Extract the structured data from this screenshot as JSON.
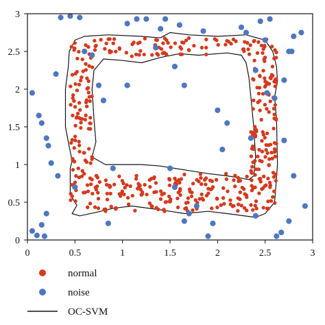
{
  "chart_data": {
    "type": "scatter",
    "title": "",
    "xlabel": "",
    "ylabel": "",
    "xlim": [
      0,
      3
    ],
    "ylim": [
      0,
      3
    ],
    "grid": false,
    "legend_position": "bottom-left",
    "x_ticks": [
      0,
      0.5,
      1,
      1.5,
      2,
      2.5,
      3
    ],
    "x_tick_labels": [
      "0",
      "0.5",
      "1",
      "1.5",
      "2",
      "2.5",
      "3"
    ],
    "y_ticks": [
      0,
      0.5,
      1,
      1.5,
      2,
      2.5,
      3
    ],
    "y_tick_labels": [
      "0",
      "0.5",
      "1",
      "1.5",
      "2",
      "2.5",
      "3"
    ],
    "series": [
      {
        "name": "normal",
        "color": "#d43a1e",
        "marker": "circle",
        "generated_count": 500,
        "region": "rectangular band between the inner and outer OC-SVM boundaries"
      },
      {
        "name": "noise",
        "color": "#4f77c0",
        "marker": "circle",
        "points": [
          [
            0.05,
            0.12
          ],
          [
            0.1,
            0.06
          ],
          [
            0.15,
            0.2
          ],
          [
            0.18,
            0.05
          ],
          [
            0.2,
            0.35
          ],
          [
            0.05,
            1.95
          ],
          [
            0.12,
            1.65
          ],
          [
            0.15,
            1.55
          ],
          [
            0.2,
            1.35
          ],
          [
            0.22,
            1.25
          ],
          [
            0.25,
            1.02
          ],
          [
            0.3,
            2.2
          ],
          [
            0.32,
            0.85
          ],
          [
            0.35,
            2.95
          ],
          [
            0.45,
            2.97
          ],
          [
            0.55,
            2.95
          ],
          [
            0.6,
            2.5
          ],
          [
            0.5,
            0.7
          ],
          [
            0.68,
            2.45
          ],
          [
            0.75,
            2.05
          ],
          [
            0.8,
            1.85
          ],
          [
            0.85,
            0.22
          ],
          [
            0.9,
            0.95
          ],
          [
            1.05,
            2.87
          ],
          [
            1.05,
            2.05
          ],
          [
            1.15,
            2.93
          ],
          [
            1.25,
            2.93
          ],
          [
            1.35,
            2.55
          ],
          [
            1.4,
            2.8
          ],
          [
            1.45,
            2.93
          ],
          [
            1.5,
            0.95
          ],
          [
            1.55,
            0.7
          ],
          [
            1.55,
            2.3
          ],
          [
            1.6,
            2.85
          ],
          [
            1.65,
            2.05
          ],
          [
            1.65,
            0.25
          ],
          [
            1.7,
            0.35
          ],
          [
            1.78,
            0.45
          ],
          [
            1.85,
            2.77
          ],
          [
            1.9,
            0.05
          ],
          [
            1.95,
            0.22
          ],
          [
            2.0,
            1.72
          ],
          [
            2.05,
            1.2
          ],
          [
            2.1,
            1.55
          ],
          [
            2.25,
            2.82
          ],
          [
            2.3,
            2.75
          ],
          [
            2.35,
            1.35
          ],
          [
            2.4,
            2.25
          ],
          [
            2.4,
            0.32
          ],
          [
            2.45,
            2.9
          ],
          [
            2.5,
            2.65
          ],
          [
            2.52,
            1.95
          ],
          [
            2.55,
            2.93
          ],
          [
            2.6,
            1.88
          ],
          [
            2.62,
            0.05
          ],
          [
            2.67,
            0.1
          ],
          [
            2.75,
            2.5
          ],
          [
            2.78,
            2.5
          ],
          [
            2.8,
            2.7
          ],
          [
            2.8,
            0.85
          ],
          [
            2.88,
            2.75
          ],
          [
            2.92,
            0.45
          ],
          [
            2.75,
            0.25
          ],
          [
            2.7,
            1.32
          ],
          [
            2.7,
            2.12
          ]
        ]
      }
    ],
    "boundaries": {
      "name": "OC-SVM",
      "color": "#111111",
      "outer": [
        [
          0.47,
          0.35
        ],
        [
          0.52,
          0.46
        ],
        [
          0.45,
          0.6
        ],
        [
          0.45,
          0.95
        ],
        [
          0.47,
          1.05
        ],
        [
          0.43,
          1.3
        ],
        [
          0.4,
          1.5
        ],
        [
          0.4,
          2.0
        ],
        [
          0.43,
          2.3
        ],
        [
          0.44,
          2.5
        ],
        [
          0.5,
          2.65
        ],
        [
          0.6,
          2.7
        ],
        [
          0.85,
          2.72
        ],
        [
          1.2,
          2.7
        ],
        [
          1.4,
          2.68
        ],
        [
          1.5,
          2.75
        ],
        [
          1.7,
          2.72
        ],
        [
          2.0,
          2.7
        ],
        [
          2.3,
          2.72
        ],
        [
          2.5,
          2.65
        ],
        [
          2.58,
          2.5
        ],
        [
          2.62,
          2.3
        ],
        [
          2.63,
          2.1
        ],
        [
          2.6,
          1.9
        ],
        [
          2.62,
          1.6
        ],
        [
          2.63,
          1.0
        ],
        [
          2.6,
          0.5
        ],
        [
          2.5,
          0.35
        ],
        [
          2.4,
          0.3
        ],
        [
          2.1,
          0.35
        ],
        [
          1.9,
          0.38
        ],
        [
          1.65,
          0.35
        ],
        [
          1.4,
          0.4
        ],
        [
          1.1,
          0.45
        ],
        [
          0.9,
          0.42
        ],
        [
          0.7,
          0.36
        ],
        [
          0.55,
          0.32
        ],
        [
          0.47,
          0.35
        ]
      ],
      "inner": [
        [
          0.68,
          1.1
        ],
        [
          0.82,
          1.0
        ],
        [
          1.2,
          1.0
        ],
        [
          1.4,
          0.98
        ],
        [
          1.7,
          0.92
        ],
        [
          1.9,
          0.88
        ],
        [
          2.1,
          0.85
        ],
        [
          2.25,
          0.82
        ],
        [
          2.33,
          0.8
        ],
        [
          2.38,
          0.85
        ],
        [
          2.4,
          1.1
        ],
        [
          2.38,
          1.5
        ],
        [
          2.35,
          1.9
        ],
        [
          2.33,
          2.15
        ],
        [
          2.3,
          2.35
        ],
        [
          2.25,
          2.45
        ],
        [
          2.1,
          2.48
        ],
        [
          1.8,
          2.45
        ],
        [
          1.6,
          2.47
        ],
        [
          1.4,
          2.42
        ],
        [
          1.2,
          2.35
        ],
        [
          1.0,
          2.38
        ],
        [
          0.8,
          2.4
        ],
        [
          0.7,
          2.25
        ],
        [
          0.68,
          2.0
        ],
        [
          0.7,
          1.6
        ],
        [
          0.72,
          1.3
        ],
        [
          0.68,
          1.1
        ]
      ]
    },
    "legend": [
      {
        "label": "normal",
        "type": "point",
        "color": "#d43a1e"
      },
      {
        "label": "noise",
        "type": "point",
        "color": "#4f77c0"
      },
      {
        "label": "OC-SVM",
        "type": "line",
        "color": "#111111"
      }
    ]
  }
}
